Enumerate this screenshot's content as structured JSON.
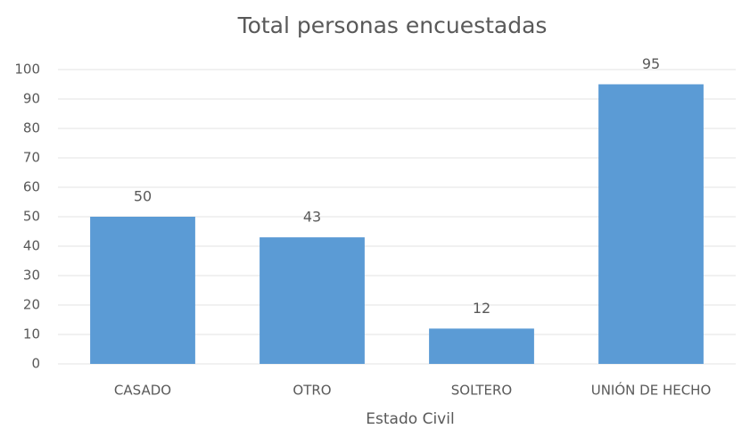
{
  "chart_data": {
    "type": "bar",
    "title": "Total personas encuestadas",
    "x_label": "Estado Civil",
    "categories": [
      "CASADO",
      "OTRO",
      "SOLTERO",
      "UNIÓN DE HECHO"
    ],
    "values": [
      50,
      43,
      12,
      95
    ],
    "color": "#5b9bd5",
    "ylim": [
      0,
      100
    ],
    "yticks": [
      0,
      10,
      20,
      30,
      40,
      50,
      60,
      70,
      80,
      90,
      100
    ],
    "grid": true
  }
}
